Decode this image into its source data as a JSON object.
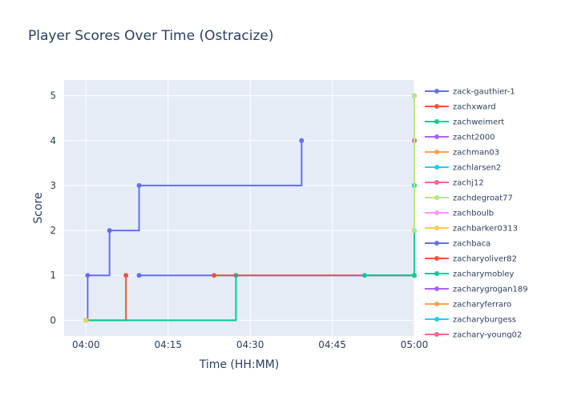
{
  "chart_data": {
    "type": "line",
    "line_shape": "step",
    "title": "Player Scores Over Time (Ostracize)",
    "xlabel": "Time (HH:MM)",
    "ylabel": "Score",
    "x_unit": "minutes after 04:00",
    "xlim": [
      -4,
      60
    ],
    "ylim": [
      -0.35,
      5.35
    ],
    "x_ticks": [
      {
        "value": 0,
        "label": "04:00"
      },
      {
        "value": 15,
        "label": "04:15"
      },
      {
        "value": 30,
        "label": "04:30"
      },
      {
        "value": 45,
        "label": "04:45"
      },
      {
        "value": 60,
        "label": "05:00"
      }
    ],
    "y_ticks": [
      0,
      1,
      2,
      3,
      4,
      5
    ],
    "grid": true,
    "legend_position": "right",
    "series": [
      {
        "name": "zack-gauthier-1",
        "color": "#636efa",
        "points": [
          [
            0,
            0
          ],
          [
            0.3,
            1
          ],
          [
            4.3,
            2
          ],
          [
            9.7,
            3
          ],
          [
            39.4,
            4
          ]
        ]
      },
      {
        "name": "zachxward",
        "color": "#EF553B",
        "points": [
          [
            0,
            0
          ],
          [
            7.3,
            1
          ]
        ]
      },
      {
        "name": "zachweimert",
        "color": "#00cc96",
        "points": [
          [
            0,
            0
          ],
          [
            27.4,
            1
          ]
        ]
      },
      {
        "name": "zacht2000",
        "color": "#ab63fa",
        "points": [
          [
            0,
            0
          ]
        ]
      },
      {
        "name": "zachman03",
        "color": "#FFA15A",
        "points": [
          [
            0,
            0
          ]
        ]
      },
      {
        "name": "zachlarsen2",
        "color": "#19d3f3",
        "points": [
          [
            0,
            0
          ]
        ]
      },
      {
        "name": "zachj12",
        "color": "#FF6692",
        "points": [
          [
            0,
            0
          ]
        ]
      },
      {
        "name": "zachdegroat77",
        "color": "#B6E880",
        "points": [
          [
            0,
            0
          ]
        ]
      },
      {
        "name": "zachboulb",
        "color": "#FF97FF",
        "points": [
          [
            0,
            0
          ]
        ]
      },
      {
        "name": "zachbarker0313",
        "color": "#FECB52",
        "points": [
          [
            0,
            0
          ]
        ]
      },
      {
        "name": "zachbaca",
        "color": "#636efa",
        "points": [
          [
            9.7,
            1
          ],
          [
            60,
            1
          ],
          [
            60,
            2
          ],
          [
            60,
            3
          ],
          [
            60,
            4
          ],
          [
            60,
            5
          ]
        ]
      },
      {
        "name": "zacharyoliver82",
        "color": "#EF553B",
        "points": [
          [
            23.4,
            1
          ],
          [
            60,
            4
          ]
        ]
      },
      {
        "name": "zacharymobley",
        "color": "#00cc96",
        "points": [
          [
            50.9,
            1
          ],
          [
            60,
            1
          ],
          [
            60,
            2
          ],
          [
            60,
            3
          ],
          [
            60,
            4
          ],
          [
            60,
            5
          ]
        ]
      },
      {
        "name": "zacharygrogan189",
        "color": "#ab63fa",
        "points": []
      },
      {
        "name": "zacharyferraro",
        "color": "#FFA15A",
        "points": []
      },
      {
        "name": "zacharyburgess",
        "color": "#19d3f3",
        "points": [
          [
            60,
            3
          ]
        ]
      },
      {
        "name": "zachary-young02",
        "color": "#FF6692",
        "points": [
          [
            60,
            4
          ]
        ]
      },
      {
        "name": "",
        "color": "#B6E880",
        "points": [
          [
            60,
            2
          ],
          [
            60,
            5
          ]
        ]
      }
    ]
  }
}
